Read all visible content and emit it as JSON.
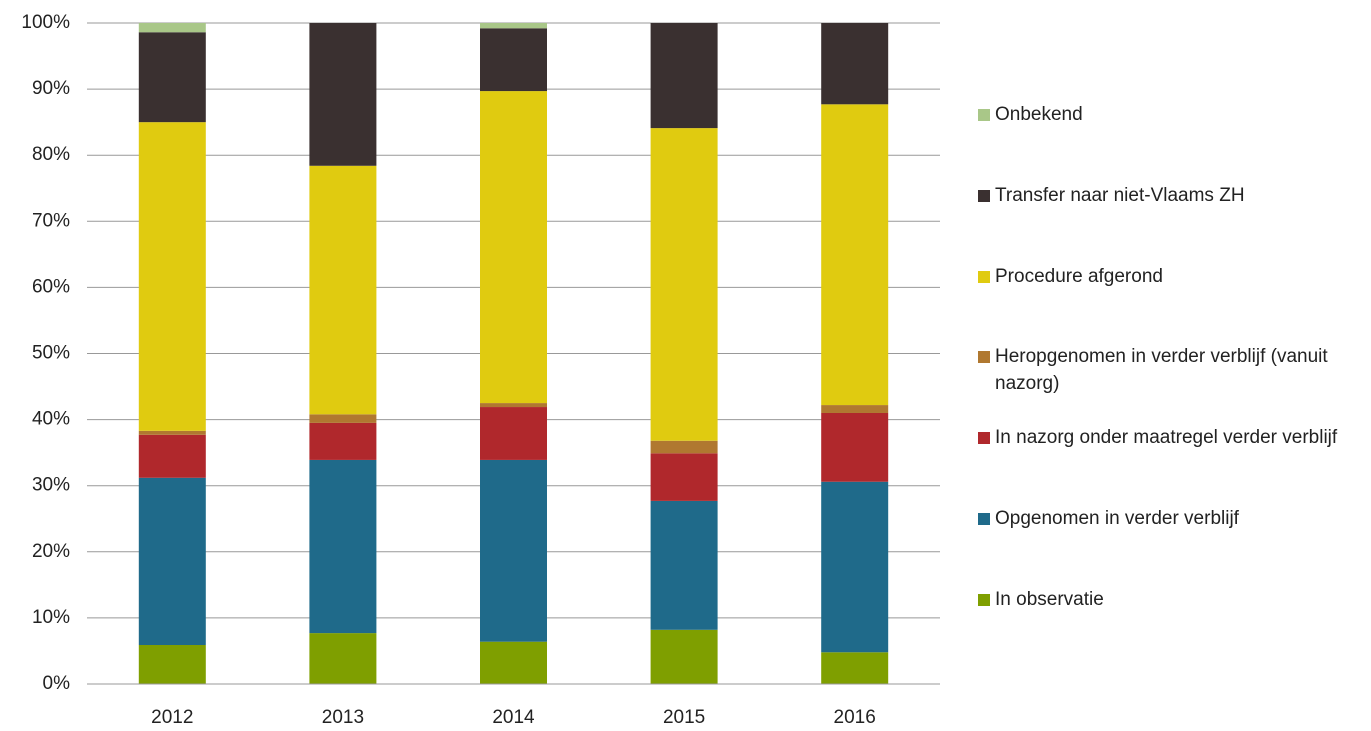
{
  "chart_data": {
    "type": "stacked_bar",
    "categories": [
      "2012",
      "2013",
      "2014",
      "2015",
      "2016"
    ],
    "series": [
      {
        "name": "In observatie",
        "color": "#7f9f00",
        "values": [
          5.9,
          7.7,
          6.4,
          8.2,
          4.8
        ]
      },
      {
        "name": "Opgenomen in verder verblijf",
        "color": "#1f6a8a",
        "values": [
          25.3,
          26.2,
          27.5,
          19.5,
          25.8
        ]
      },
      {
        "name": "In nazorg onder maatregel verder verblijf",
        "color": "#b0282c",
        "values": [
          6.5,
          5.6,
          8.0,
          7.2,
          10.4
        ]
      },
      {
        "name": "Heropgenomen in verder verblijf (vanuit nazorg)",
        "color": "#b07830",
        "values": [
          0.6,
          1.3,
          0.6,
          1.9,
          1.2
        ]
      },
      {
        "name": "Procedure afgerond",
        "color": "#e0cb10",
        "values": [
          46.7,
          37.6,
          47.2,
          47.3,
          45.5
        ]
      },
      {
        "name": "Transfer naar niet-Vlaams ZH",
        "color": "#3a3030",
        "values": [
          13.6,
          21.6,
          9.5,
          15.9,
          12.3
        ]
      },
      {
        "name": "Onbekend",
        "color": "#a9c788",
        "values": [
          1.4,
          0,
          0.8,
          0,
          0
        ]
      }
    ],
    "ylim": [
      0,
      100
    ],
    "yticks": [
      {
        "value": 0,
        "label": "0%"
      },
      {
        "value": 10,
        "label": "10%"
      },
      {
        "value": 20,
        "label": "20%"
      },
      {
        "value": 30,
        "label": "30%"
      },
      {
        "value": 40,
        "label": "40%"
      },
      {
        "value": 50,
        "label": "50%"
      },
      {
        "value": 60,
        "label": "60%"
      },
      {
        "value": 70,
        "label": "70%"
      },
      {
        "value": 80,
        "label": "80%"
      },
      {
        "value": 90,
        "label": "90%"
      },
      {
        "value": 100,
        "label": "100%"
      }
    ],
    "grid": true,
    "legend": "right"
  }
}
